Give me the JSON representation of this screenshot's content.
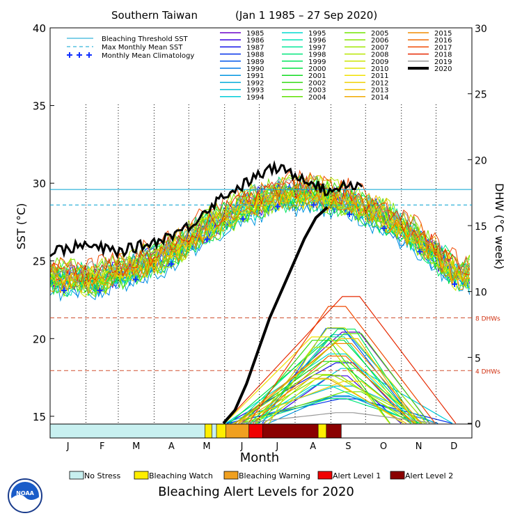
{
  "chart_data": {
    "type": "line",
    "title_location": "Southern Taiwan",
    "title_range": "(Jan 1 1985 – 27 Sep 2020)",
    "xlabel": "Month",
    "ylabel_left": "SST (°C)",
    "ylabel_right": "DHW (°C week)",
    "months": [
      "J",
      "F",
      "M",
      "A",
      "M",
      "J",
      "J",
      "A",
      "S",
      "O",
      "N",
      "D"
    ],
    "sst_axis": {
      "min": 14.5,
      "max": 40,
      "ticks": [
        15,
        20,
        25,
        30,
        35,
        40
      ]
    },
    "dhw_axis": {
      "min": 0,
      "max": 30,
      "ticks": [
        0,
        5,
        10,
        15,
        20,
        25,
        30
      ]
    },
    "bleaching_threshold_sst": 29.6,
    "max_monthly_mean_sst": 28.6,
    "dhw_markers": [
      {
        "value": 8,
        "label": "8 DHWs"
      },
      {
        "value": 4,
        "label": "4 DHWs"
      }
    ],
    "legend": {
      "threshold": "Bleaching Threshold SST",
      "mmm": "Max Monthly Mean SST",
      "climatology": "Monthly Mean Climatology"
    },
    "climatology": [
      {
        "day": 12,
        "sst": 23.1
      },
      {
        "day": 43,
        "sst": 23.1
      },
      {
        "day": 74,
        "sst": 23.8
      },
      {
        "day": 105,
        "sst": 24.8
      },
      {
        "day": 136,
        "sst": 26.4
      },
      {
        "day": 167,
        "sst": 27.7
      },
      {
        "day": 197,
        "sst": 28.5
      },
      {
        "day": 228,
        "sst": 28.6
      },
      {
        "day": 259,
        "sst": 28.0
      },
      {
        "day": 289,
        "sst": 27.1
      },
      {
        "day": 320,
        "sst": 25.6
      },
      {
        "day": 350,
        "sst": 23.5
      }
    ],
    "years": [
      "1985",
      "1986",
      "1987",
      "1988",
      "1989",
      "1990",
      "1991",
      "1992",
      "1993",
      "1994",
      "1995",
      "1996",
      "1997",
      "1998",
      "1999",
      "2000",
      "2001",
      "2002",
      "2003",
      "2004",
      "2005",
      "2006",
      "2007",
      "2008",
      "2009",
      "2010",
      "2011",
      "2012",
      "2013",
      "2014",
      "2015",
      "2016",
      "2017",
      "2018",
      "2019",
      "2020"
    ],
    "year_colors": [
      "#6a00c8",
      "#3a00e0",
      "#1010e6",
      "#0030ea",
      "#0055ea",
      "#0078e6",
      "#0095e0",
      "#00aad8",
      "#00bcd4",
      "#00ccd8",
      "#00dcd0",
      "#00e6b8",
      "#00e69a",
      "#00e67c",
      "#00e65e",
      "#00e040",
      "#10da20",
      "#30da10",
      "#50dc10",
      "#60e000",
      "#70e600",
      "#88e600",
      "#a0e600",
      "#b8e600",
      "#cce600",
      "#e0e600",
      "#f0e000",
      "#f0d000",
      "#f0c000",
      "#f0aa00",
      "#f08c00",
      "#f06a00",
      "#f04800",
      "#e62800",
      "#999999",
      "#000000"
    ],
    "sst_2020": [
      {
        "day": 0,
        "sst": 25.6
      },
      {
        "day": 30,
        "sst": 26.0
      },
      {
        "day": 60,
        "sst": 25.6
      },
      {
        "day": 90,
        "sst": 26.2
      },
      {
        "day": 120,
        "sst": 27.2
      },
      {
        "day": 135,
        "sst": 28.3
      },
      {
        "day": 150,
        "sst": 29.2
      },
      {
        "day": 165,
        "sst": 29.8
      },
      {
        "day": 180,
        "sst": 30.5
      },
      {
        "day": 195,
        "sst": 31.0
      },
      {
        "day": 210,
        "sst": 30.6
      },
      {
        "day": 225,
        "sst": 30.2
      },
      {
        "day": 240,
        "sst": 29.4
      },
      {
        "day": 255,
        "sst": 30.0
      },
      {
        "day": 270,
        "sst": 29.8
      }
    ],
    "dhw_2020": [
      {
        "day": 150,
        "dhw": 0
      },
      {
        "day": 160,
        "dhw": 1.0
      },
      {
        "day": 170,
        "dhw": 3.0
      },
      {
        "day": 180,
        "dhw": 5.5
      },
      {
        "day": 190,
        "dhw": 8.0
      },
      {
        "day": 200,
        "dhw": 10.0
      },
      {
        "day": 210,
        "dhw": 12.0
      },
      {
        "day": 220,
        "dhw": 14.0
      },
      {
        "day": 230,
        "dhw": 15.6
      },
      {
        "day": 240,
        "dhw": 16.4
      }
    ],
    "alert_levels": [
      {
        "name": "No Stress",
        "color": "#c8f0f0"
      },
      {
        "name": "Bleaching Watch",
        "color": "#ffee00"
      },
      {
        "name": "Bleaching Warning",
        "color": "#f0a020"
      },
      {
        "name": "Alert Level 1",
        "color": "#f00000"
      },
      {
        "name": "Alert Level 2",
        "color": "#8a0000"
      }
    ],
    "alert_timeline": [
      {
        "start": 0,
        "end": 134,
        "level": 0
      },
      {
        "start": 134,
        "end": 140,
        "level": 1
      },
      {
        "start": 140,
        "end": 144,
        "level": 0
      },
      {
        "start": 144,
        "end": 152,
        "level": 1
      },
      {
        "start": 152,
        "end": 172,
        "level": 2
      },
      {
        "start": 172,
        "end": 184,
        "level": 3
      },
      {
        "start": 184,
        "end": 232,
        "level": 4
      },
      {
        "start": 232,
        "end": 239,
        "level": 1
      },
      {
        "start": 239,
        "end": 252,
        "level": 4
      },
      {
        "start": 252,
        "end": 365,
        "level": -1
      }
    ],
    "bottom_title": "Bleaching Alert Levels for 2020"
  }
}
